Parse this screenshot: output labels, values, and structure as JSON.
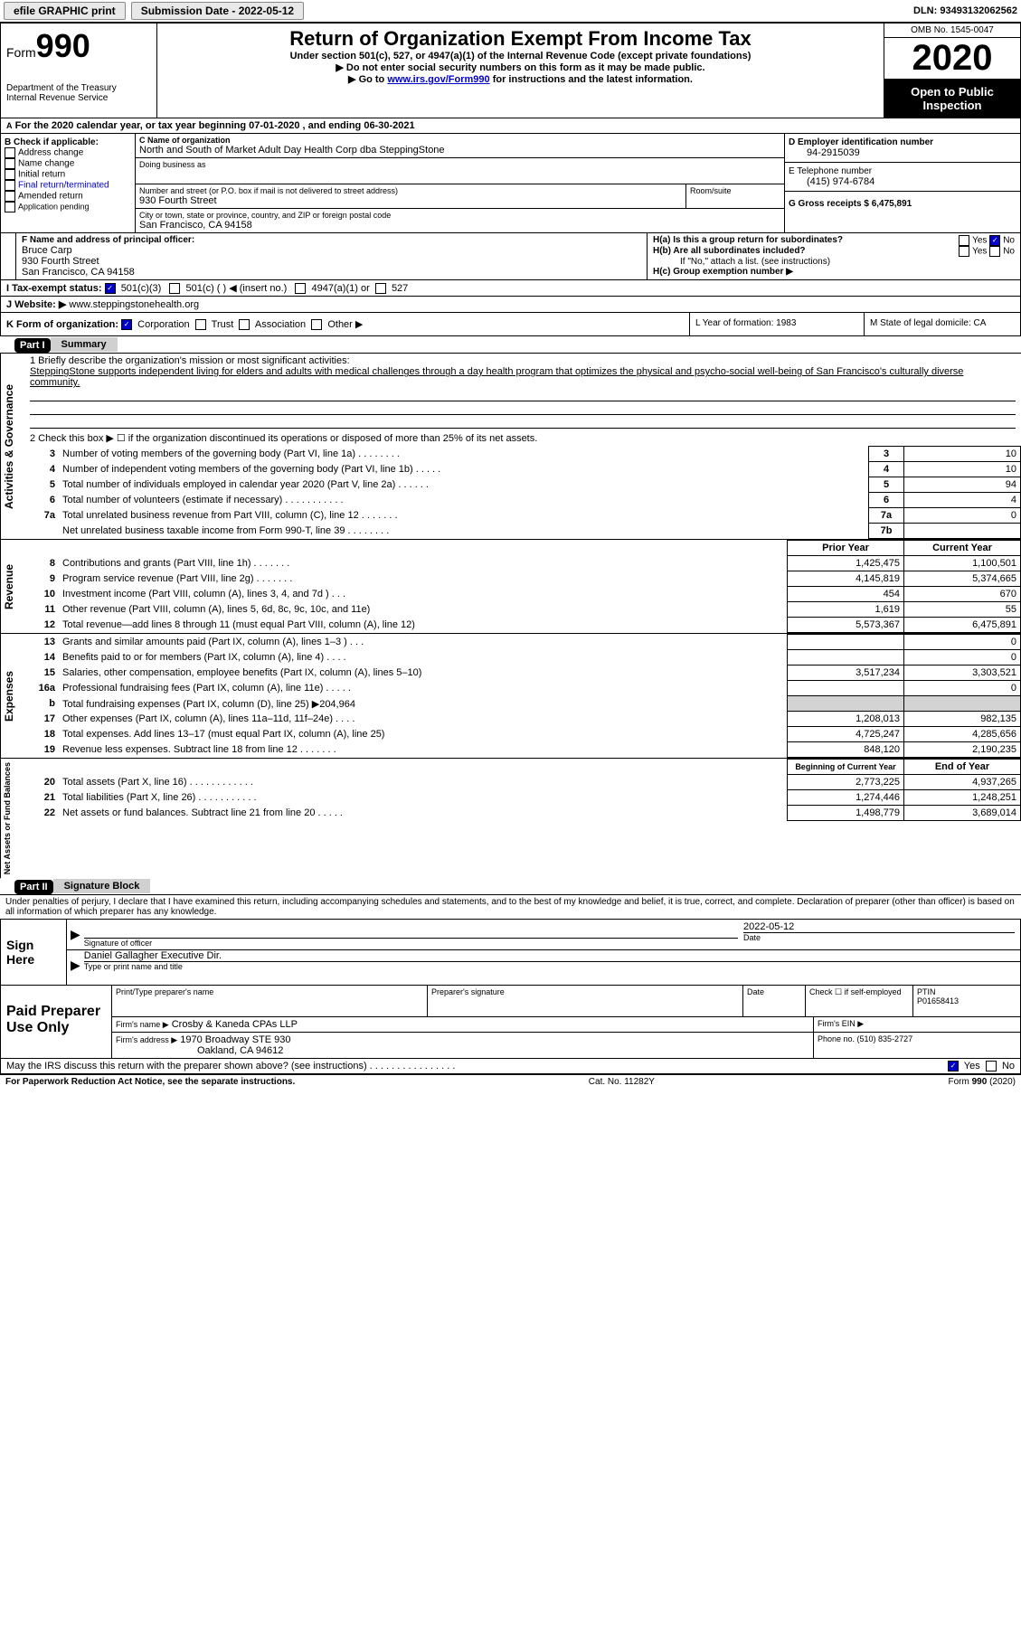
{
  "topbar": {
    "efile_label": "efile GRAPHIC print",
    "submission_label": "Submission Date - 2022-05-12",
    "dln_label": "DLN: 93493132062562"
  },
  "header": {
    "form_word": "Form",
    "form_num": "990",
    "title": "Return of Organization Exempt From Income Tax",
    "subtitle": "Under section 501(c), 527, or 4947(a)(1) of the Internal Revenue Code (except private foundations)",
    "note1": "▶ Do not enter social security numbers on this form as it may be made public.",
    "note2_pre": "▶ Go to ",
    "note2_link": "www.irs.gov/Form990",
    "note2_post": " for instructions and the latest information.",
    "dept": "Department of the Treasury\nInternal Revenue Service",
    "omb": "OMB No. 1545-0047",
    "year": "2020",
    "open": "Open to Public Inspection"
  },
  "period": {
    "text": "For the 2020 calendar year, or tax year beginning 07-01-2020     , and ending 06-30-2021"
  },
  "boxB": {
    "title": "B Check if applicable:",
    "items": [
      "Address change",
      "Name change",
      "Initial return",
      "Final return/terminated",
      "Amended return",
      "Application pending"
    ]
  },
  "boxC": {
    "label": "C Name of organization",
    "name": "North and South of Market Adult Day Health Corp dba SteppingStone",
    "dba_label": "Doing business as",
    "addr_label": "Number and street (or P.O. box if mail is not delivered to street address)",
    "room_label": "Room/suite",
    "addr": "930 Fourth Street",
    "city_label": "City or town, state or province, country, and ZIP or foreign postal code",
    "city": "San Francisco, CA  94158"
  },
  "boxD": {
    "label": "D Employer identification number",
    "val": "94-2915039"
  },
  "boxE": {
    "label": "E Telephone number",
    "val": "(415) 974-6784"
  },
  "boxG": {
    "label": "G Gross receipts $ 6,475,891"
  },
  "boxF": {
    "label": "F  Name and address of principal officer:",
    "name": "Bruce Carp",
    "addr": "930 Fourth Street",
    "city": "San Francisco, CA  94158"
  },
  "boxH": {
    "a_label": "H(a)  Is this a group return for subordinates?",
    "b_label": "H(b)  Are all subordinates included?",
    "b_note": "If \"No,\" attach a list. (see instructions)",
    "c_label": "H(c)  Group exemption number ▶",
    "yes": "Yes",
    "no": "No"
  },
  "boxI": {
    "label": "I     Tax-exempt status:",
    "opts": [
      "501(c)(3)",
      "501(c) (  ) ◀ (insert no.)",
      "4947(a)(1) or",
      "527"
    ]
  },
  "boxJ": {
    "label": "J    Website: ▶",
    "val": "www.steppingstonehealth.org"
  },
  "boxK": {
    "label": "K Form of organization:",
    "opts": [
      "Corporation",
      "Trust",
      "Association",
      "Other ▶"
    ]
  },
  "boxL": {
    "label": "L Year of formation: 1983"
  },
  "boxM": {
    "label": "M State of legal domicile: CA"
  },
  "part1": {
    "header": "Part I",
    "title": "Summary",
    "line1_label": "1   Briefly describe the organization's mission or most significant activities:",
    "line1_text": "SteppingStone supports independent living for elders and adults with medical challenges through a day health program that optimizes the physical and psycho-social well-being of San Francisco's culturally diverse community.",
    "line2": "2   Check this box ▶ ☐  if the organization discontinued its operations or disposed of more than 25% of its net assets.",
    "governance_label": "Activities & Governance",
    "revenue_label": "Revenue",
    "expenses_label": "Expenses",
    "netassets_label": "Net Assets or Fund Balances",
    "gov_rows": [
      {
        "n": "3",
        "label": "Number of voting members of the governing body (Part VI, line 1a)  .    .    .    .    .    .    .    .",
        "box": "3",
        "val": "10"
      },
      {
        "n": "4",
        "label": "Number of independent voting members of the governing body (Part VI, line 1b)  .    .    .    .    .",
        "box": "4",
        "val": "10"
      },
      {
        "n": "5",
        "label": "Total number of individuals employed in calendar year 2020 (Part V, line 2a)  .    .    .    .    .    .",
        "box": "5",
        "val": "94"
      },
      {
        "n": "6",
        "label": "Total number of volunteers (estimate if necessary)   .    .    .    .    .    .    .    .    .    .    .",
        "box": "6",
        "val": "4"
      },
      {
        "n": "7a",
        "label": "Total unrelated business revenue from Part VIII, column (C), line 12   .    .    .    .    .    .    .",
        "box": "7a",
        "val": "0"
      },
      {
        "n": "",
        "label": "Net unrelated business taxable income from Form 990-T, line 39  .    .    .    .    .    .    .    .",
        "box": "7b",
        "val": ""
      }
    ],
    "col_prior": "Prior Year",
    "col_current": "Current Year",
    "rev_rows": [
      {
        "n": "8",
        "label": "Contributions and grants (Part VIII, line 1h)   .    .    .    .    .    .    .",
        "p": "1,425,475",
        "c": "1,100,501"
      },
      {
        "n": "9",
        "label": "Program service revenue (Part VIII, line 2g)   .    .    .    .    .    .    .",
        "p": "4,145,819",
        "c": "5,374,665"
      },
      {
        "n": "10",
        "label": "Investment income (Part VIII, column (A), lines 3, 4, and 7d )   .    .    .",
        "p": "454",
        "c": "670"
      },
      {
        "n": "11",
        "label": "Other revenue (Part VIII, column (A), lines 5, 6d, 8c, 9c, 10c, and 11e)",
        "p": "1,619",
        "c": "55"
      },
      {
        "n": "12",
        "label": "Total revenue—add lines 8 through 11 (must equal Part VIII, column (A), line 12)",
        "p": "5,573,367",
        "c": "6,475,891"
      }
    ],
    "exp_rows": [
      {
        "n": "13",
        "label": "Grants and similar amounts paid (Part IX, column (A), lines 1–3 )   .    .    .",
        "p": "",
        "c": "0"
      },
      {
        "n": "14",
        "label": "Benefits paid to or for members (Part IX, column (A), line 4)   .    .    .    .",
        "p": "",
        "c": "0"
      },
      {
        "n": "15",
        "label": "Salaries, other compensation, employee benefits (Part IX, column (A), lines 5–10)",
        "p": "3,517,234",
        "c": "3,303,521"
      },
      {
        "n": "16a",
        "label": "Professional fundraising fees (Part IX, column (A), line 11e)   .    .    .    .    .",
        "p": "",
        "c": "0"
      },
      {
        "n": "b",
        "label": "Total fundraising expenses (Part IX, column (D), line 25) ▶204,964",
        "p": "shade",
        "c": "shade"
      },
      {
        "n": "17",
        "label": "Other expenses (Part IX, column (A), lines 11a–11d, 11f–24e)   .    .    .    .",
        "p": "1,208,013",
        "c": "982,135"
      },
      {
        "n": "18",
        "label": "Total expenses. Add lines 13–17 (must equal Part IX, column (A), line 25)",
        "p": "4,725,247",
        "c": "4,285,656"
      },
      {
        "n": "19",
        "label": "Revenue less expenses. Subtract line 18 from line 12  .    .    .    .    .    .    .",
        "p": "848,120",
        "c": "2,190,235"
      }
    ],
    "col_begin": "Beginning of Current Year",
    "col_end": "End of Year",
    "net_rows": [
      {
        "n": "20",
        "label": "Total assets (Part X, line 16)  .    .    .    .    .    .    .    .    .    .    .    .",
        "p": "2,773,225",
        "c": "4,937,265"
      },
      {
        "n": "21",
        "label": "Total liabilities (Part X, line 26)  .    .    .    .    .    .    .    .    .    .    .",
        "p": "1,274,446",
        "c": "1,248,251"
      },
      {
        "n": "22",
        "label": "Net assets or fund balances. Subtract line 21 from line 20   .    .    .    .    .",
        "p": "1,498,779",
        "c": "3,689,014"
      }
    ]
  },
  "part2": {
    "header": "Part II",
    "title": "Signature Block",
    "declaration": "Under penalties of perjury, I declare that I have examined this return, including accompanying schedules and statements, and to the best of my knowledge and belief, it is true, correct, and complete. Declaration of preparer (other than officer) is based on all information of which preparer has any knowledge.",
    "sign_here": "Sign Here",
    "sig_officer": "Signature of officer",
    "sig_date": "2022-05-12",
    "date_label": "Date",
    "officer_name": "Daniel Gallagher  Executive Dir.",
    "type_label": "Type or print name and title",
    "paid_label": "Paid Preparer Use Only",
    "prep_name_label": "Print/Type preparer's name",
    "prep_sig_label": "Preparer's signature",
    "prep_date_label": "Date",
    "self_emp": "Check ☐ if self-employed",
    "ptin_label": "PTIN",
    "ptin": "P01658413",
    "firm_name_label": "Firm's name      ▶",
    "firm_name": "Crosby & Kaneda CPAs LLP",
    "firm_ein_label": "Firm's EIN ▶",
    "firm_addr_label": "Firm's address ▶",
    "firm_addr": "1970 Broadway STE 930",
    "firm_city": "Oakland, CA  94612",
    "firm_phone_label": "Phone no. (510) 835-2727",
    "discuss": "May the IRS discuss this return with the preparer shown above? (see instructions)    .    .    .    .    .    .    .    .    .    .    .    .    .    .    .    .",
    "yes": "Yes",
    "no": "No"
  },
  "footer": {
    "left": "For Paperwork Reduction Act Notice, see the separate instructions.",
    "mid": "Cat. No. 11282Y",
    "right": "Form 990 (2020)"
  }
}
